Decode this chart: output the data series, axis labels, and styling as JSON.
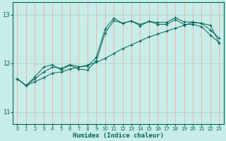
{
  "xlabel": "Humidex (Indice chaleur)",
  "bg_color": "#c8ece8",
  "grid_color": "#ff9999",
  "line_color": "#006655",
  "ylim": [
    10.75,
    13.25
  ],
  "xlim": [
    -0.5,
    23.5
  ],
  "yticks": [
    11,
    12,
    13
  ],
  "xticks": [
    0,
    1,
    2,
    3,
    4,
    5,
    6,
    7,
    8,
    9,
    10,
    11,
    12,
    13,
    14,
    15,
    16,
    17,
    18,
    19,
    20,
    21,
    22,
    23
  ],
  "line1_x": [
    0,
    1,
    2,
    3,
    4,
    5,
    6,
    7,
    8,
    9,
    10,
    11,
    12,
    13,
    14,
    15,
    16,
    17,
    18,
    19,
    20,
    21,
    22,
    23
  ],
  "line1_y": [
    11.68,
    11.54,
    11.72,
    11.92,
    11.97,
    11.86,
    11.96,
    11.88,
    11.86,
    12.05,
    12.62,
    12.88,
    12.82,
    12.87,
    12.8,
    12.86,
    12.84,
    12.84,
    12.94,
    12.85,
    12.85,
    12.82,
    12.68,
    12.52
  ],
  "line2_x": [
    0,
    1,
    2,
    3,
    4,
    5,
    6,
    7,
    8,
    9,
    10,
    11,
    12,
    13,
    14,
    15,
    16,
    17,
    18,
    19,
    20,
    21,
    22,
    23
  ],
  "line2_y": [
    11.68,
    11.54,
    11.68,
    11.82,
    11.92,
    11.9,
    11.97,
    11.93,
    11.94,
    12.12,
    12.7,
    12.93,
    12.82,
    12.87,
    12.77,
    12.86,
    12.8,
    12.8,
    12.9,
    12.8,
    12.8,
    12.75,
    12.58,
    12.42
  ],
  "line3_x": [
    0,
    1,
    2,
    3,
    4,
    5,
    6,
    7,
    8,
    9,
    10,
    11,
    12,
    13,
    14,
    15,
    16,
    17,
    18,
    19,
    20,
    21,
    22,
    23
  ],
  "line3_y": [
    11.68,
    11.54,
    11.62,
    11.7,
    11.8,
    11.82,
    11.88,
    11.92,
    11.96,
    12.02,
    12.1,
    12.2,
    12.3,
    12.38,
    12.46,
    12.54,
    12.6,
    12.66,
    12.72,
    12.78,
    12.84,
    12.82,
    12.78,
    12.42
  ]
}
